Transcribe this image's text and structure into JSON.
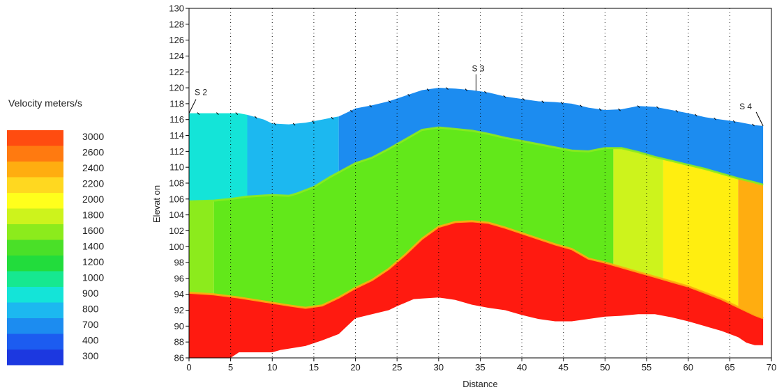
{
  "chart_data": {
    "type": "heatmap",
    "xlabel": "Distance",
    "ylabel": "Elevat on",
    "xlim": [
      0,
      70
    ],
    "ylim": [
      86,
      130
    ],
    "x_ticks": [
      0,
      5,
      10,
      15,
      20,
      25,
      30,
      35,
      40,
      45,
      50,
      55,
      60,
      65,
      70
    ],
    "y_ticks": [
      86,
      88,
      90,
      92,
      94,
      96,
      98,
      100,
      102,
      104,
      106,
      108,
      110,
      112,
      114,
      116,
      118,
      120,
      122,
      124,
      126,
      128,
      130
    ],
    "vertical_grid": "dotted",
    "legend": {
      "title": "Velocity meters/s",
      "position": "left",
      "entries": [
        {
          "label": "3000",
          "color": "#ff4c10"
        },
        {
          "label": "2600",
          "color": "#ff7a10"
        },
        {
          "label": "2400",
          "color": "#ffad10"
        },
        {
          "label": "2200",
          "color": "#ffd820"
        },
        {
          "label": "2000",
          "color": "#ffff1c"
        },
        {
          "label": "1800",
          "color": "#cdf31c"
        },
        {
          "label": "1600",
          "color": "#8ceb1c"
        },
        {
          "label": "1400",
          "color": "#4ae028"
        },
        {
          "label": "1200",
          "color": "#22dc3c"
        },
        {
          "label": "1000",
          "color": "#16e890"
        },
        {
          "label": "900",
          "color": "#14e4d8"
        },
        {
          "label": "800",
          "color": "#1cb8f0"
        },
        {
          "label": "700",
          "color": "#1c8cf0"
        },
        {
          "label": "400",
          "color": "#1c5cf0"
        },
        {
          "label": "300",
          "color": "#1c38e0"
        }
      ]
    },
    "surface": [
      [
        0,
        116.8
      ],
      [
        3,
        116.8
      ],
      [
        6,
        116.8
      ],
      [
        7,
        116.6
      ],
      [
        9,
        116.0
      ],
      [
        10,
        115.5
      ],
      [
        12,
        115.4
      ],
      [
        14,
        115.6
      ],
      [
        16,
        116.0
      ],
      [
        18,
        116.4
      ],
      [
        20,
        117.4
      ],
      [
        22,
        117.8
      ],
      [
        24,
        118.3
      ],
      [
        26,
        119.0
      ],
      [
        28,
        119.7
      ],
      [
        30,
        120.0
      ],
      [
        32,
        119.9
      ],
      [
        34,
        119.7
      ],
      [
        36,
        119.4
      ],
      [
        38,
        118.9
      ],
      [
        40,
        118.6
      ],
      [
        42,
        118.3
      ],
      [
        44,
        118.2
      ],
      [
        46,
        118.0
      ],
      [
        48,
        117.5
      ],
      [
        50,
        117.2
      ],
      [
        52,
        117.3
      ],
      [
        54,
        117.7
      ],
      [
        56,
        117.6
      ],
      [
        58,
        117.2
      ],
      [
        60,
        116.8
      ],
      [
        62,
        116.3
      ],
      [
        64,
        116.0
      ],
      [
        66,
        115.7
      ],
      [
        68,
        115.3
      ],
      [
        69,
        115.2
      ]
    ],
    "layer1_base": [
      [
        0,
        105.7
      ],
      [
        3,
        105.8
      ],
      [
        5,
        106.0
      ],
      [
        7,
        106.3
      ],
      [
        10,
        106.5
      ],
      [
        12,
        106.4
      ],
      [
        13,
        106.7
      ],
      [
        15,
        107.5
      ],
      [
        17,
        108.8
      ],
      [
        20,
        110.5
      ],
      [
        22,
        111.2
      ],
      [
        24,
        112.3
      ],
      [
        26,
        113.5
      ],
      [
        28,
        114.7
      ],
      [
        30,
        115.0
      ],
      [
        32,
        114.8
      ],
      [
        34,
        114.6
      ],
      [
        36,
        114.2
      ],
      [
        38,
        113.7
      ],
      [
        40,
        113.3
      ],
      [
        42,
        112.9
      ],
      [
        44,
        112.5
      ],
      [
        46,
        112.1
      ],
      [
        48,
        112.0
      ],
      [
        50,
        112.4
      ],
      [
        52,
        112.4
      ],
      [
        54,
        111.9
      ],
      [
        56,
        111.3
      ],
      [
        58,
        110.8
      ],
      [
        60,
        110.3
      ],
      [
        62,
        109.8
      ],
      [
        64,
        109.2
      ],
      [
        66,
        108.6
      ],
      [
        68,
        108.1
      ],
      [
        69,
        107.8
      ]
    ],
    "refractor_top": [
      [
        0,
        94.2
      ],
      [
        3,
        94.0
      ],
      [
        6,
        93.6
      ],
      [
        9,
        93.1
      ],
      [
        12,
        92.6
      ],
      [
        14,
        92.3
      ],
      [
        16,
        92.6
      ],
      [
        18,
        93.6
      ],
      [
        20,
        94.8
      ],
      [
        22,
        95.8
      ],
      [
        24,
        97.2
      ],
      [
        26,
        99.0
      ],
      [
        28,
        101.0
      ],
      [
        30,
        102.5
      ],
      [
        32,
        103.1
      ],
      [
        34,
        103.2
      ],
      [
        36,
        103.0
      ],
      [
        38,
        102.4
      ],
      [
        40,
        101.7
      ],
      [
        42,
        101.0
      ],
      [
        44,
        100.3
      ],
      [
        46,
        99.7
      ],
      [
        48,
        98.5
      ],
      [
        50,
        98.0
      ],
      [
        52,
        97.4
      ],
      [
        54,
        96.8
      ],
      [
        56,
        96.2
      ],
      [
        58,
        95.6
      ],
      [
        60,
        95.0
      ],
      [
        62,
        94.2
      ],
      [
        64,
        93.4
      ],
      [
        66,
        92.4
      ],
      [
        68,
        91.4
      ],
      [
        69,
        91.0
      ]
    ],
    "refractor_base": [
      [
        0,
        86.0
      ],
      [
        5,
        86.0
      ],
      [
        6,
        86.7
      ],
      [
        10,
        86.7
      ],
      [
        11,
        87.0
      ],
      [
        14,
        87.5
      ],
      [
        16,
        88.2
      ],
      [
        18,
        89.0
      ],
      [
        19,
        90.0
      ],
      [
        20,
        91.0
      ],
      [
        22,
        91.5
      ],
      [
        24,
        92.0
      ],
      [
        25,
        92.5
      ],
      [
        27,
        93.4
      ],
      [
        30,
        93.6
      ],
      [
        32,
        93.3
      ],
      [
        34,
        92.7
      ],
      [
        36,
        92.3
      ],
      [
        38,
        92.0
      ],
      [
        40,
        91.4
      ],
      [
        42,
        90.9
      ],
      [
        44,
        90.6
      ],
      [
        46,
        90.6
      ],
      [
        48,
        90.9
      ],
      [
        50,
        91.2
      ],
      [
        52,
        91.3
      ],
      [
        54,
        91.5
      ],
      [
        56,
        91.5
      ],
      [
        58,
        91.1
      ],
      [
        60,
        90.6
      ],
      [
        62,
        90.0
      ],
      [
        64,
        89.4
      ],
      [
        66,
        88.6
      ],
      [
        67,
        87.9
      ],
      [
        68,
        87.6
      ],
      [
        69,
        87.6
      ]
    ],
    "shots": [
      {
        "label": "S 2",
        "x": 0,
        "elev": 116.8
      },
      {
        "label": "S 3",
        "x": 34.5,
        "elev": 119.6
      },
      {
        "label": "S 4",
        "x": 69,
        "elev": 115.2
      }
    ],
    "layer1_blocks": [
      {
        "x0": 0,
        "x1": 7,
        "color": "#14e4d8"
      },
      {
        "x0": 7,
        "x1": 18,
        "color": "#1cb8f0"
      },
      {
        "x0": 18,
        "x1": 69,
        "color": "#1c8cf0"
      }
    ],
    "layer2_blocks": [
      {
        "x0": 0,
        "x1": 3,
        "color": "#8ceb1c"
      },
      {
        "x0": 3,
        "x1": 51,
        "color": "#62e81a"
      },
      {
        "x0": 51,
        "x1": 57,
        "color": "#cdf31c"
      },
      {
        "x0": 57,
        "x1": 66,
        "color": "#ffee10"
      },
      {
        "x0": 66,
        "x1": 69,
        "color": "#ffad10"
      }
    ],
    "refractor_color": "#ff1a10"
  }
}
